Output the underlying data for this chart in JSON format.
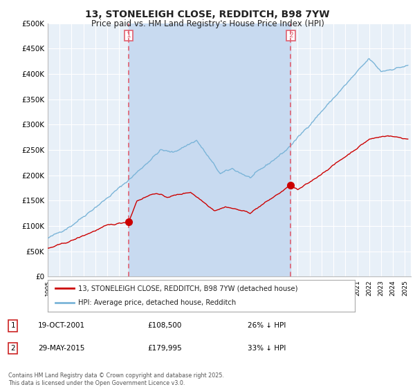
{
  "title": "13, STONELEIGH CLOSE, REDDITCH, B98 7YW",
  "subtitle": "Price paid vs. HM Land Registry's House Price Index (HPI)",
  "title_fontsize": 10,
  "subtitle_fontsize": 8.5,
  "background_color": "#ffffff",
  "plot_bg_color": "#e8f0f8",
  "shade_color": "#c8daf0",
  "grid_color": "#ffffff",
  "ylim": [
    0,
    500000
  ],
  "yticks": [
    0,
    50000,
    100000,
    150000,
    200000,
    250000,
    300000,
    350000,
    400000,
    450000,
    500000
  ],
  "ytick_labels": [
    "£0",
    "£50K",
    "£100K",
    "£150K",
    "£200K",
    "£250K",
    "£300K",
    "£350K",
    "£400K",
    "£450K",
    "£500K"
  ],
  "hpi_color": "#7ab4d8",
  "price_color": "#cc0000",
  "vline_color": "#e06070",
  "purchase1_year": 2001.8,
  "purchase1_price": 108500,
  "purchase2_year": 2015.42,
  "purchase2_price": 179995,
  "purchase1_date": "19-OCT-2001",
  "purchase1_pct": "26% ↓ HPI",
  "purchase2_date": "29-MAY-2015",
  "purchase2_pct": "33% ↓ HPI",
  "legend_line1": "13, STONELEIGH CLOSE, REDDITCH, B98 7YW (detached house)",
  "legend_line2": "HPI: Average price, detached house, Redditch",
  "footer": "Contains HM Land Registry data © Crown copyright and database right 2025.\nThis data is licensed under the Open Government Licence v3.0."
}
